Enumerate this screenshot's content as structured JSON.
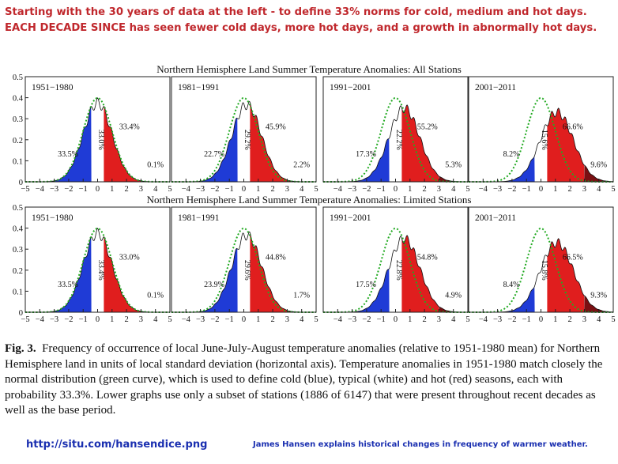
{
  "headline": {
    "line1": "Starting with the 30 years of data at the left - to define 33% norms for cold, medium and hot days.",
    "line2": "EACH DECADE SINCE has seen fewer cold days, more hot days, and a growth in abnormally hot days."
  },
  "colors": {
    "cold": "#1f3bd6",
    "typical": "#ffffff",
    "hot": "#e01e1e",
    "extreme": "#7a0f12",
    "normal_curve": "#22aa22",
    "headline": "#c0282d",
    "link": "#1a2fb0"
  },
  "chart_data": [
    {
      "type": "area",
      "title": "Northern Hemisphere Land Summer Temperature Anomalies: All Stations",
      "x_ticks": [
        "−5",
        "−4",
        "−3",
        "−2",
        "−1",
        "0",
        "1",
        "2",
        "3",
        "4",
        "5"
      ],
      "y_ticks": [
        "0",
        "0.1",
        "0.2",
        "0.3",
        "0.4",
        "0.5"
      ],
      "xlim": [
        -5,
        5
      ],
      "ylim": [
        0,
        0.5
      ],
      "normal_curve": "normal distribution, sigma 1",
      "panels": [
        {
          "period": "1951−1980",
          "mean_shift": 0,
          "cold": "33.5%",
          "typical": "33.0%",
          "hot": "33.4%",
          "extreme": "0.1%"
        },
        {
          "period": "1981−1991",
          "mean_shift": 0.2,
          "cold": "22.7%",
          "typical": "29.2%",
          "hot": "45.9%",
          "extreme": "2.2%"
        },
        {
          "period": "1991−2001",
          "mean_shift": 0.6,
          "cold": "17.3%",
          "typical": "22.2%",
          "hot": "55.2%",
          "extreme": "5.3%"
        },
        {
          "period": "2001−2011",
          "mean_shift": 1.1,
          "cold": "8.2%",
          "typical": "15.6%",
          "hot": "66.6%",
          "extreme": "9.6%"
        }
      ]
    },
    {
      "type": "area",
      "title": "Northern Hemisphere Land Summer Temperature Anomalies: Limited Stations",
      "x_ticks": [
        "−5",
        "−4",
        "−3",
        "−2",
        "−1",
        "0",
        "1",
        "2",
        "3",
        "4",
        "5"
      ],
      "y_ticks": [
        "0",
        "0.1",
        "0.2",
        "0.3",
        "0.4",
        "0.5"
      ],
      "xlim": [
        -5,
        5
      ],
      "ylim": [
        0,
        0.5
      ],
      "normal_curve": "normal distribution, sigma 1",
      "panels": [
        {
          "period": "1951−1980",
          "mean_shift": 0,
          "cold": "33.5%",
          "typical": "33.4%",
          "hot": "33.0%",
          "extreme": "0.1%"
        },
        {
          "period": "1981−1991",
          "mean_shift": 0.2,
          "cold": "23.9%",
          "typical": "29.6%",
          "hot": "44.8%",
          "extreme": "1.7%"
        },
        {
          "period": "1991−2001",
          "mean_shift": 0.6,
          "cold": "17.5%",
          "typical": "22.8%",
          "hot": "54.8%",
          "extreme": "4.9%"
        },
        {
          "period": "2001−2011",
          "mean_shift": 1.1,
          "cold": "8.4%",
          "typical": "15.8%",
          "hot": "66.5%",
          "extreme": "9.3%"
        }
      ]
    }
  ],
  "caption": {
    "label": "Fig. 3.",
    "text": "Frequency of occurrence of local June-July-August temperature anomalies (relative to 1951-1980 mean) for Northern Hemisphere land in units of local standard deviation (horizontal axis).  Temperature anomalies in 1951-1980 match closely the normal distribution (green curve), which is used to define cold (blue), typical (white) and hot (red) seasons, each with probability 33.3%.  Lower graphs use only a subset of stations (1886 of 6147) that were present throughout recent decades as well as the base period."
  },
  "footer": {
    "url": "http://situ.com/hansendice.png",
    "credit": "James Hansen explains historical changes in frequency of warmer weather."
  }
}
